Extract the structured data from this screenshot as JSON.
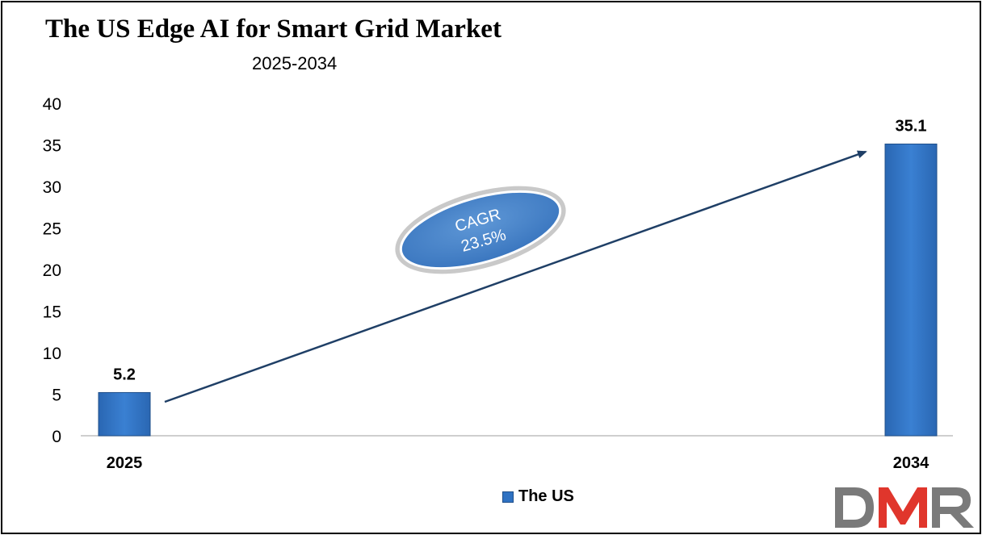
{
  "chart_data": {
    "type": "bar",
    "title": "The US Edge AI for Smart Grid Market",
    "subtitle": "2025-2034",
    "categories": [
      "2025",
      "2034"
    ],
    "series": [
      {
        "name": "The US",
        "values": [
          5.2,
          35.1
        ],
        "color": "#2f72c2"
      }
    ],
    "data_labels": [
      "5.2",
      "35.1"
    ],
    "ylim": [
      0,
      40
    ],
    "yticks": [
      0,
      5,
      10,
      15,
      20,
      25,
      30,
      35,
      40
    ],
    "grid": false,
    "legend": "bottom",
    "annotation": {
      "line1": "CAGR",
      "line2": "23.5%"
    }
  },
  "logo": {
    "text": "DMR",
    "colors": [
      "#7a7a7a",
      "#e0362c",
      "#7a7a7a"
    ]
  }
}
